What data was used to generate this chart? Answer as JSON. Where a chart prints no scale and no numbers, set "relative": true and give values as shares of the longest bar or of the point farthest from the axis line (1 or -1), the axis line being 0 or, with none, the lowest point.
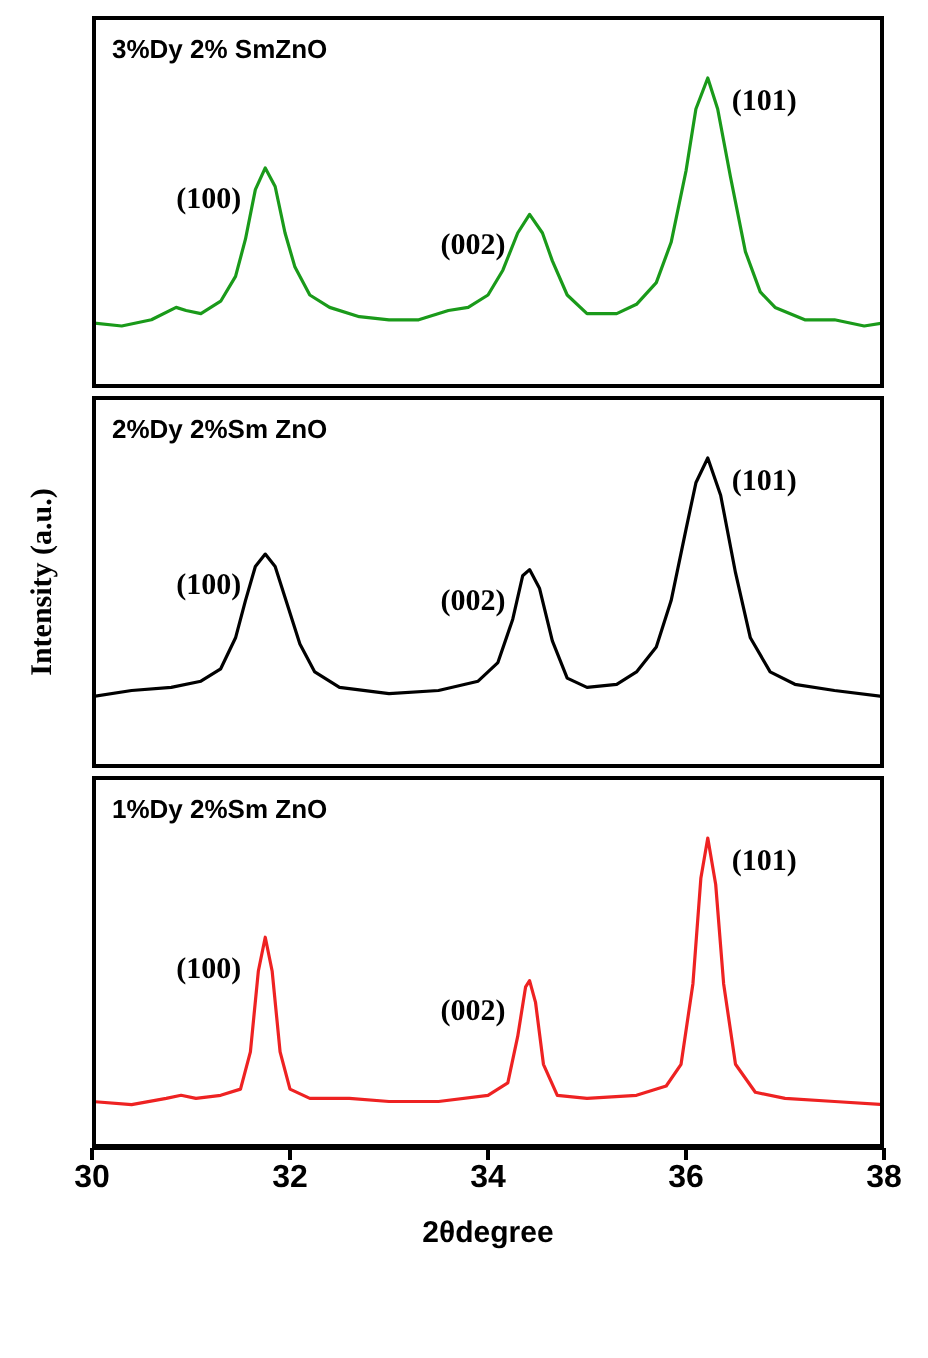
{
  "chart_data": [
    {
      "type": "line",
      "title": "3%Dy 2% SmZnO",
      "relative": true,
      "xlim": [
        30,
        38
      ],
      "xticks": [
        30,
        32,
        34,
        36,
        38
      ],
      "tick_labels": false,
      "series": [
        {
          "color": "#1a9a1a",
          "x": [
            30.0,
            30.3,
            30.6,
            30.85,
            30.95,
            31.1,
            31.3,
            31.45,
            31.55,
            31.65,
            31.75,
            31.85,
            31.95,
            32.05,
            32.2,
            32.4,
            32.7,
            33.0,
            33.3,
            33.6,
            33.8,
            34.0,
            34.15,
            34.3,
            34.42,
            34.55,
            34.65,
            34.8,
            35.0,
            35.3,
            35.5,
            35.7,
            35.85,
            36.0,
            36.1,
            36.22,
            36.32,
            36.45,
            36.6,
            36.75,
            36.9,
            37.2,
            37.5,
            37.8,
            38.0
          ],
          "values": [
            0.21,
            0.2,
            0.22,
            0.26,
            0.25,
            0.24,
            0.28,
            0.36,
            0.48,
            0.64,
            0.71,
            0.65,
            0.5,
            0.39,
            0.3,
            0.26,
            0.23,
            0.22,
            0.22,
            0.25,
            0.26,
            0.3,
            0.38,
            0.5,
            0.56,
            0.5,
            0.41,
            0.3,
            0.24,
            0.24,
            0.27,
            0.34,
            0.47,
            0.7,
            0.9,
            1.0,
            0.9,
            0.68,
            0.44,
            0.31,
            0.26,
            0.22,
            0.22,
            0.2,
            0.21
          ]
        }
      ],
      "annotations": [
        {
          "text": "(100)",
          "x": 31.75,
          "y": 0.71
        },
        {
          "text": "(002)",
          "x": 34.42,
          "y": 0.56
        },
        {
          "text": "(101)",
          "x": 36.22,
          "y": 1.0
        }
      ]
    },
    {
      "type": "line",
      "title": "2%Dy 2%Sm ZnO",
      "ylabel": "Intensity (a.u.)",
      "relative": true,
      "xlim": [
        30,
        38
      ],
      "xticks": [
        30,
        32,
        34,
        36,
        38
      ],
      "tick_labels": false,
      "series": [
        {
          "color": "#000000",
          "x": [
            30.0,
            30.4,
            30.8,
            31.1,
            31.3,
            31.45,
            31.55,
            31.65,
            31.75,
            31.85,
            31.95,
            32.1,
            32.25,
            32.5,
            33.0,
            33.5,
            33.9,
            34.1,
            34.25,
            34.35,
            34.42,
            34.52,
            34.65,
            34.8,
            35.0,
            35.3,
            35.5,
            35.7,
            35.85,
            36.0,
            36.1,
            36.22,
            36.35,
            36.5,
            36.65,
            36.85,
            37.1,
            37.5,
            38.0
          ],
          "values": [
            0.23,
            0.25,
            0.26,
            0.28,
            0.32,
            0.42,
            0.54,
            0.65,
            0.69,
            0.65,
            0.55,
            0.4,
            0.31,
            0.26,
            0.24,
            0.25,
            0.28,
            0.34,
            0.48,
            0.62,
            0.64,
            0.58,
            0.41,
            0.29,
            0.26,
            0.27,
            0.31,
            0.39,
            0.54,
            0.77,
            0.92,
            1.0,
            0.88,
            0.63,
            0.42,
            0.31,
            0.27,
            0.25,
            0.23
          ]
        }
      ],
      "annotations": [
        {
          "text": "(100)",
          "x": 31.75,
          "y": 0.69
        },
        {
          "text": "(002)",
          "x": 34.42,
          "y": 0.64
        },
        {
          "text": "(101)",
          "x": 36.22,
          "y": 1.0
        }
      ]
    },
    {
      "type": "line",
      "title": "1%Dy 2%Sm ZnO",
      "xlabel": "2θdegree",
      "relative": true,
      "xlim": [
        30,
        38
      ],
      "xticks": [
        30,
        32,
        34,
        36,
        38
      ],
      "tick_labels": "x",
      "series": [
        {
          "color": "#ee2222",
          "x": [
            30.0,
            30.4,
            30.75,
            30.9,
            31.05,
            31.3,
            31.5,
            31.6,
            31.68,
            31.75,
            31.82,
            31.9,
            32.0,
            32.2,
            32.6,
            33.0,
            33.5,
            34.0,
            34.2,
            34.3,
            34.38,
            34.42,
            34.48,
            34.56,
            34.7,
            35.0,
            35.5,
            35.8,
            35.95,
            36.07,
            36.15,
            36.22,
            36.3,
            36.38,
            36.5,
            36.7,
            37.0,
            37.5,
            38.0
          ],
          "values": [
            0.15,
            0.14,
            0.16,
            0.17,
            0.16,
            0.17,
            0.19,
            0.31,
            0.57,
            0.68,
            0.57,
            0.31,
            0.19,
            0.16,
            0.16,
            0.15,
            0.15,
            0.17,
            0.21,
            0.36,
            0.52,
            0.54,
            0.47,
            0.27,
            0.17,
            0.16,
            0.17,
            0.2,
            0.27,
            0.53,
            0.87,
            1.0,
            0.85,
            0.53,
            0.27,
            0.18,
            0.16,
            0.15,
            0.14
          ]
        }
      ],
      "annotations": [
        {
          "text": "(100)",
          "x": 31.75,
          "y": 0.68
        },
        {
          "text": "(002)",
          "x": 34.42,
          "y": 0.54
        },
        {
          "text": "(101)",
          "x": 36.22,
          "y": 1.0
        }
      ]
    }
  ]
}
